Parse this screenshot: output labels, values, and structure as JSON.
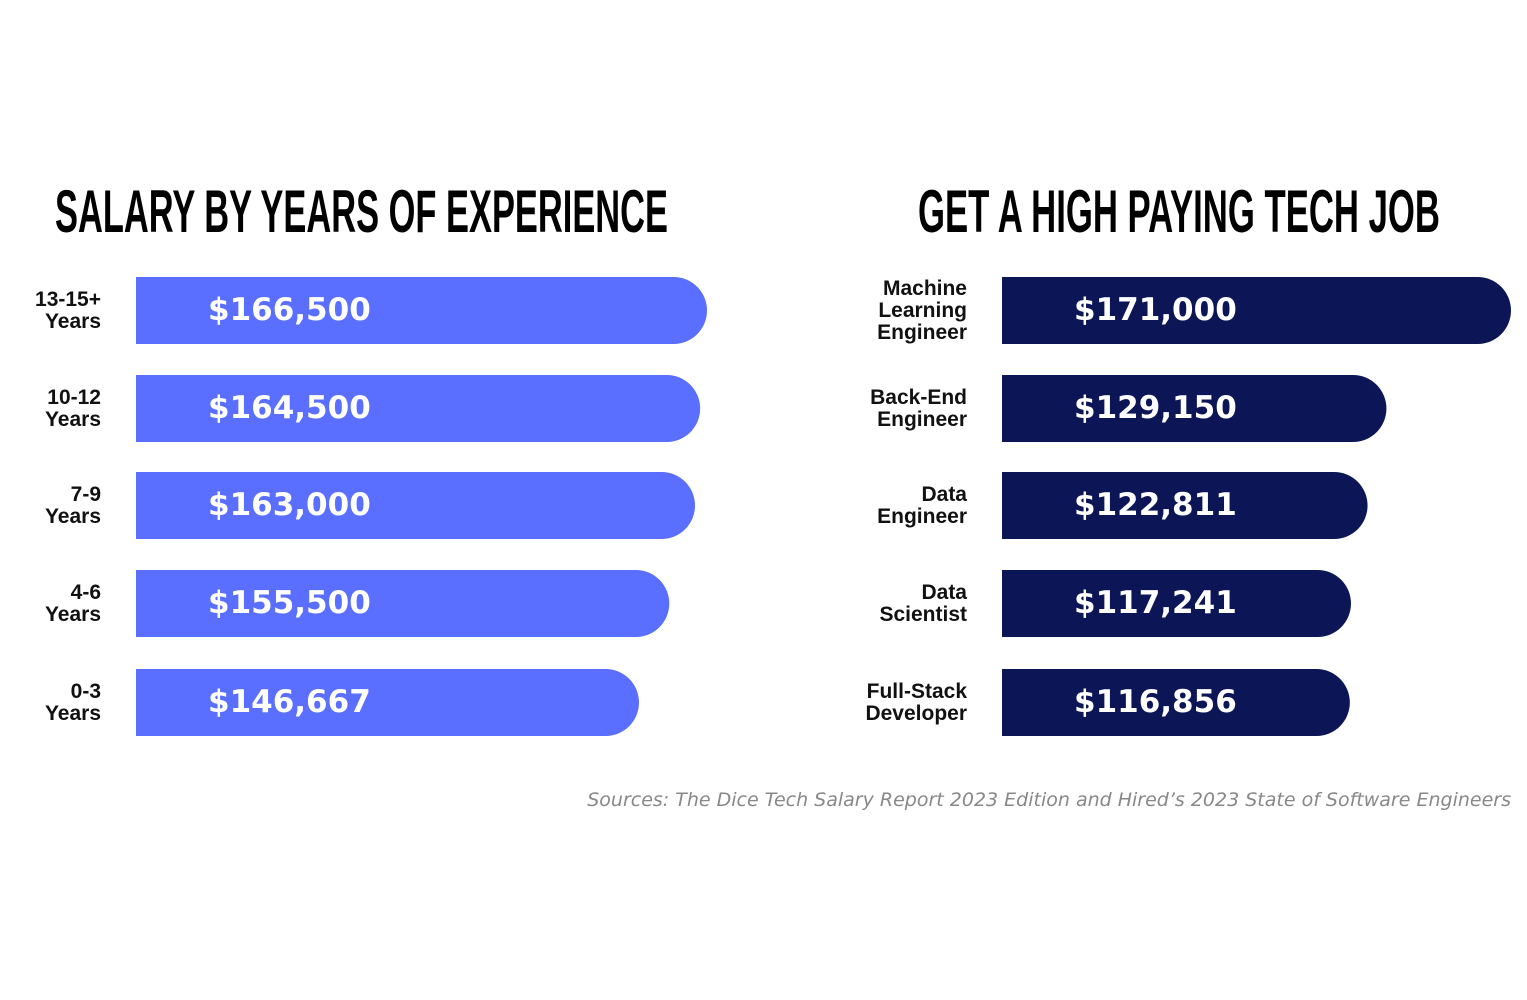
{
  "chart_data": [
    {
      "type": "bar",
      "title": "SALARY BY YEARS OF EXPERIENCE",
      "categories": [
        "13-15+ Years",
        "10-12 Years",
        "7-9 Years",
        "4-6 Years",
        "0-3 Years"
      ],
      "values": [
        166500,
        164500,
        163000,
        155500,
        146667
      ],
      "value_labels": [
        "$166,500",
        "$164,500",
        "$163,000",
        "$155,500",
        "$146,667"
      ],
      "color": "#5a6eff"
    },
    {
      "type": "bar",
      "title": "GET A HIGH PAYING TECH JOB",
      "categories": [
        "Machine Learning Engineer",
        "Back-End Engineer",
        "Data Engineer",
        "Data Scientist",
        "Full-Stack Developer"
      ],
      "values": [
        171000,
        129150,
        122811,
        117241,
        116856
      ],
      "value_labels": [
        "$171,000",
        "$129,150",
        "$122,811",
        "$117,241",
        "$116,856"
      ],
      "color": "#0c1657"
    }
  ],
  "source": "Sources: The Dice Tech Salary Report 2023 Edition and Hired’s 2023 State of Software Engineers"
}
